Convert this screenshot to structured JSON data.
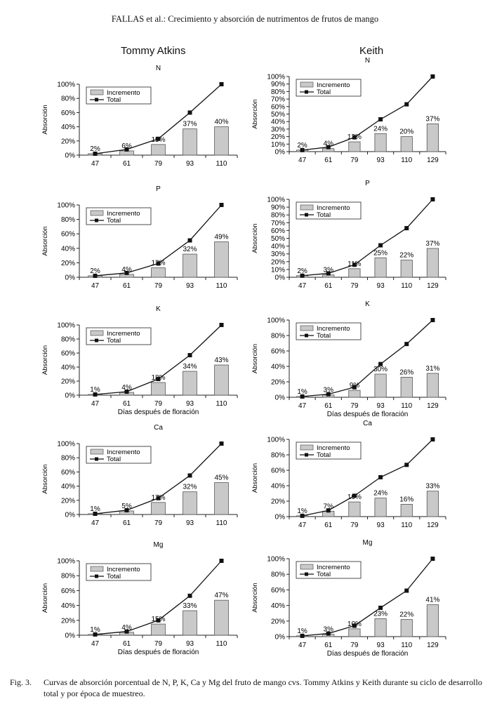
{
  "header": "FALLAS et al.: Crecimiento y absorción de nutrimentos de frutos de mango",
  "columns": [
    "Tommy Atkins",
    "Keith"
  ],
  "caption": {
    "label": "Fig. 3.",
    "text": "Curvas de absorción porcentual de N, P, K, Ca y Mg del fruto de mango cvs. Tommy Atkins y Keith durante su ciclo de desarrollo total y por época de muestreo."
  },
  "colors": {
    "bar_fill": "#c9c9c9",
    "line": "#111111"
  },
  "chart_data": [
    {
      "type": "bar",
      "title": "N",
      "cultivar": "Tommy Atkins",
      "categories": [
        "47",
        "61",
        "79",
        "93",
        "110"
      ],
      "ylabel": "Absorción",
      "xlabel": "",
      "ylim": [
        0,
        100
      ],
      "yticks": [
        "0%",
        "20%",
        "40%",
        "60%",
        "80%",
        "100%"
      ],
      "legend": [
        "Incremento",
        "Total"
      ],
      "legend_position": "top-left",
      "series": [
        {
          "name": "Incremento",
          "values": [
            2,
            6,
            15,
            37,
            40
          ],
          "labels": [
            "2%",
            "6%",
            "15%",
            "37%",
            "40%"
          ]
        },
        {
          "name": "Total",
          "values": [
            2,
            8,
            23,
            60,
            100
          ]
        }
      ]
    },
    {
      "type": "bar",
      "title": "N",
      "cultivar": "Keith",
      "categories": [
        "47",
        "61",
        "79",
        "93",
        "110",
        "129"
      ],
      "ylabel": "Absorción",
      "xlabel": "",
      "ylim": [
        0,
        100
      ],
      "yticks": [
        "0%",
        "10%",
        "20%",
        "30%",
        "40%",
        "50%",
        "60%",
        "70%",
        "80%",
        "90%",
        "100%"
      ],
      "legend": [
        "Incremento",
        "Total"
      ],
      "legend_position": "top-left",
      "series": [
        {
          "name": "Incremento",
          "values": [
            2,
            4,
            13,
            24,
            20,
            37
          ],
          "labels": [
            "2%",
            "4%",
            "13%",
            "24%",
            "20%",
            "37%"
          ]
        },
        {
          "name": "Total",
          "values": [
            2,
            6,
            19,
            43,
            63,
            100
          ]
        }
      ]
    },
    {
      "type": "bar",
      "title": "P",
      "cultivar": "Tommy Atkins",
      "categories": [
        "47",
        "61",
        "79",
        "93",
        "110"
      ],
      "ylabel": "Absorción",
      "xlabel": "",
      "ylim": [
        0,
        100
      ],
      "yticks": [
        "0%",
        "20%",
        "40%",
        "60%",
        "80%",
        "100%"
      ],
      "legend": [
        "Incremento",
        "Total"
      ],
      "legend_position": "top-left",
      "series": [
        {
          "name": "Incremento",
          "values": [
            2,
            4,
            13,
            32,
            49
          ],
          "labels": [
            "2%",
            "4%",
            "13%",
            "32%",
            "49%"
          ]
        },
        {
          "name": "Total",
          "values": [
            2,
            6,
            19,
            51,
            100
          ]
        }
      ]
    },
    {
      "type": "bar",
      "title": "P",
      "cultivar": "Keith",
      "categories": [
        "47",
        "61",
        "79",
        "93",
        "110",
        "129"
      ],
      "ylabel": "Absorción",
      "xlabel": "",
      "ylim": [
        0,
        100
      ],
      "yticks": [
        "0%",
        "10%",
        "20%",
        "30%",
        "40%",
        "50%",
        "60%",
        "70%",
        "80%",
        "90%",
        "100%"
      ],
      "legend": [
        "Incremento",
        "Total"
      ],
      "legend_position": "top-left",
      "series": [
        {
          "name": "Incremento",
          "values": [
            2,
            3,
            11,
            25,
            22,
            37
          ],
          "labels": [
            "2%",
            "3%",
            "11%",
            "25%",
            "22%",
            "37%"
          ]
        },
        {
          "name": "Total",
          "values": [
            2,
            5,
            16,
            41,
            63,
            100
          ]
        }
      ]
    },
    {
      "type": "bar",
      "title": "K",
      "cultivar": "Tommy Atkins",
      "categories": [
        "47",
        "61",
        "79",
        "93",
        "110"
      ],
      "ylabel": "Absorción",
      "xlabel": "Días después de floración",
      "ylim": [
        0,
        100
      ],
      "yticks": [
        "0%",
        "20%",
        "40%",
        "60%",
        "80%",
        "100%"
      ],
      "legend": [
        "Incremento",
        "Total"
      ],
      "legend_position": "top-left",
      "series": [
        {
          "name": "Incremento",
          "values": [
            1,
            4,
            18,
            34,
            43
          ],
          "labels": [
            "1%",
            "4%",
            "18%",
            "34%",
            "43%"
          ]
        },
        {
          "name": "Total",
          "values": [
            1,
            5,
            23,
            57,
            100
          ]
        }
      ]
    },
    {
      "type": "bar",
      "title": "K",
      "cultivar": "Keith",
      "categories": [
        "47",
        "61",
        "79",
        "93",
        "110",
        "129"
      ],
      "ylabel": "Absorción",
      "xlabel": "Días después de floración",
      "ylim": [
        0,
        100
      ],
      "yticks": [
        "0%",
        "20%",
        "40%",
        "60%",
        "80%",
        "100%"
      ],
      "legend": [
        "Incremento",
        "Total"
      ],
      "legend_position": "top-left",
      "series": [
        {
          "name": "Incremento",
          "values": [
            1,
            3,
            9,
            30,
            26,
            31
          ],
          "labels": [
            "1%",
            "3%",
            "9%",
            "30%",
            "26%",
            "31%"
          ]
        },
        {
          "name": "Total",
          "values": [
            1,
            4,
            13,
            43,
            69,
            100
          ]
        }
      ]
    },
    {
      "type": "bar",
      "title": "Ca",
      "cultivar": "Tommy Atkins",
      "categories": [
        "47",
        "61",
        "79",
        "93",
        "110"
      ],
      "ylabel": "Absorción",
      "xlabel": "",
      "ylim": [
        0,
        100
      ],
      "yticks": [
        "0%",
        "20%",
        "40%",
        "60%",
        "80%",
        "100%"
      ],
      "legend": [
        "Incremento",
        "Total"
      ],
      "legend_position": "top-left",
      "series": [
        {
          "name": "Incremento",
          "values": [
            1,
            5,
            17,
            32,
            45
          ],
          "labels": [
            "1%",
            "5%",
            "17%",
            "32%",
            "45%"
          ]
        },
        {
          "name": "Total",
          "values": [
            1,
            6,
            23,
            55,
            100
          ]
        }
      ]
    },
    {
      "type": "bar",
      "title": "Ca",
      "cultivar": "Keith",
      "categories": [
        "47",
        "61",
        "79",
        "93",
        "110",
        "129"
      ],
      "ylabel": "Absorción",
      "xlabel": "",
      "ylim": [
        0,
        100
      ],
      "yticks": [
        "0%",
        "20%",
        "40%",
        "60%",
        "80%",
        "100%"
      ],
      "legend": [
        "Incremento",
        "Total"
      ],
      "legend_position": "top-left",
      "series": [
        {
          "name": "Incremento",
          "values": [
            1,
            7,
            19,
            24,
            16,
            33
          ],
          "labels": [
            "1%",
            "7%",
            "19%",
            "24%",
            "16%",
            "33%"
          ]
        },
        {
          "name": "Total",
          "values": [
            1,
            8,
            27,
            51,
            67,
            100
          ]
        }
      ]
    },
    {
      "type": "bar",
      "title": "Mg",
      "cultivar": "Tommy Atkins",
      "categories": [
        "47",
        "61",
        "79",
        "93",
        "110"
      ],
      "ylabel": "Absorción",
      "xlabel": "Días después de floración",
      "ylim": [
        0,
        100
      ],
      "yticks": [
        "0%",
        "20%",
        "40%",
        "60%",
        "80%",
        "100%"
      ],
      "legend": [
        "Incremento",
        "Total"
      ],
      "legend_position": "top-left",
      "series": [
        {
          "name": "Incremento",
          "values": [
            1,
            4,
            15,
            33,
            47
          ],
          "labels": [
            "1%",
            "4%",
            "15%",
            "33%",
            "47%"
          ]
        },
        {
          "name": "Total",
          "values": [
            1,
            5,
            20,
            53,
            100
          ]
        }
      ]
    },
    {
      "type": "bar",
      "title": "Mg",
      "cultivar": "Keith",
      "categories": [
        "47",
        "61",
        "79",
        "93",
        "110",
        "129"
      ],
      "ylabel": "Absorción",
      "xlabel": "Días después de floración",
      "ylim": [
        0,
        100
      ],
      "yticks": [
        "0%",
        "20%",
        "40%",
        "60%",
        "80%",
        "100%"
      ],
      "legend": [
        "Incremento",
        "Total"
      ],
      "legend_position": "top-left",
      "series": [
        {
          "name": "Incremento",
          "values": [
            1,
            3,
            10,
            23,
            22,
            41
          ],
          "labels": [
            "1%",
            "3%",
            "10%",
            "23%",
            "22%",
            "41%"
          ]
        },
        {
          "name": "Total",
          "values": [
            1,
            4,
            14,
            37,
            59,
            100
          ]
        }
      ]
    }
  ]
}
